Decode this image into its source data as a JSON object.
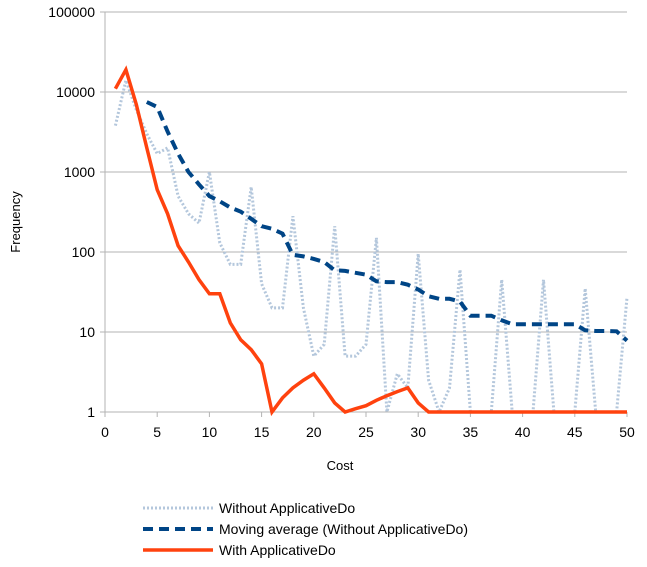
{
  "chart_data": {
    "type": "line",
    "title": "",
    "xlabel": "Cost",
    "ylabel": "Frequency",
    "xlim": [
      0,
      50
    ],
    "ylim": [
      1,
      100000
    ],
    "yscale": "log",
    "grid": {
      "horizontal": true,
      "vertical": false
    },
    "legend_position": "bottom",
    "x_ticks": [
      0,
      5,
      10,
      15,
      20,
      25,
      30,
      35,
      40,
      45,
      50
    ],
    "y_ticks": [
      1,
      10,
      100,
      1000,
      10000,
      100000
    ],
    "x_tick_labels": [
      "0",
      "5",
      "10",
      "15",
      "20",
      "25",
      "30",
      "35",
      "40",
      "45",
      "50"
    ],
    "y_tick_labels": [
      "1",
      "10",
      "100",
      "1000",
      "10000",
      "100000"
    ],
    "series": [
      {
        "name": "Without ApplicativeDo",
        "color": "#b4c7dc",
        "style": "dotted",
        "points": [
          [
            1,
            3800
          ],
          [
            2,
            14000
          ],
          [
            3,
            6000
          ],
          [
            4,
            3000
          ],
          [
            5,
            1700
          ],
          [
            6,
            2000
          ],
          [
            7,
            500
          ],
          [
            8,
            300
          ],
          [
            9,
            230
          ],
          [
            10,
            1000
          ],
          [
            11,
            130
          ],
          [
            12,
            70
          ],
          [
            13,
            70
          ],
          [
            14,
            650
          ],
          [
            15,
            40
          ],
          [
            16,
            20
          ],
          [
            17,
            20
          ],
          [
            18,
            280
          ],
          [
            19,
            20
          ],
          [
            20,
            5
          ],
          [
            21,
            7
          ],
          [
            22,
            210
          ],
          [
            23,
            5
          ],
          [
            24,
            5
          ],
          [
            25,
            7
          ],
          [
            26,
            150
          ],
          [
            27,
            1
          ],
          [
            28,
            3
          ],
          [
            29,
            2
          ],
          [
            30,
            95
          ],
          [
            31,
            2.5
          ],
          [
            32,
            1
          ],
          [
            33,
            2
          ],
          [
            34,
            60
          ],
          [
            35,
            1
          ],
          [
            36,
            1
          ],
          [
            37,
            1
          ],
          [
            38,
            45
          ],
          [
            39,
            1
          ],
          [
            40,
            1
          ],
          [
            41,
            1
          ],
          [
            42,
            45
          ],
          [
            43,
            1
          ],
          [
            44,
            1
          ],
          [
            45,
            1
          ],
          [
            46,
            35
          ],
          [
            47,
            1
          ],
          [
            48,
            1
          ],
          [
            49,
            1
          ],
          [
            50,
            27
          ]
        ]
      },
      {
        "name": "Moving average (Without ApplicativeDo)",
        "color": "#004586",
        "style": "dashed",
        "points": [
          [
            4,
            7500
          ],
          [
            5,
            6500
          ],
          [
            6,
            3200
          ],
          [
            7,
            1700
          ],
          [
            8,
            1000
          ],
          [
            9,
            700
          ],
          [
            10,
            500
          ],
          [
            11,
            430
          ],
          [
            12,
            360
          ],
          [
            13,
            320
          ],
          [
            14,
            260
          ],
          [
            15,
            210
          ],
          [
            16,
            195
          ],
          [
            17,
            170
          ],
          [
            18,
            92
          ],
          [
            19,
            88
          ],
          [
            20,
            82
          ],
          [
            21,
            75
          ],
          [
            22,
            59
          ],
          [
            23,
            58
          ],
          [
            24,
            55
          ],
          [
            25,
            52
          ],
          [
            26,
            43
          ],
          [
            27,
            42
          ],
          [
            28,
            42
          ],
          [
            29,
            39
          ],
          [
            30,
            34
          ],
          [
            31,
            28
          ],
          [
            32,
            26
          ],
          [
            33,
            26
          ],
          [
            34,
            24
          ],
          [
            35,
            16
          ],
          [
            36,
            16
          ],
          [
            37,
            16
          ],
          [
            38,
            14
          ],
          [
            39,
            12.5
          ],
          [
            40,
            12.5
          ],
          [
            41,
            12.5
          ],
          [
            42,
            12.5
          ],
          [
            43,
            12.5
          ],
          [
            44,
            12.5
          ],
          [
            45,
            12.5
          ],
          [
            46,
            10.5
          ],
          [
            47,
            10.3
          ],
          [
            48,
            10.3
          ],
          [
            49,
            10.2
          ],
          [
            50,
            7.8
          ]
        ]
      },
      {
        "name": "With ApplicativeDo",
        "color": "#ff420e",
        "style": "solid",
        "points": [
          [
            1,
            11000
          ],
          [
            2,
            19000
          ],
          [
            3,
            7000
          ],
          [
            4,
            2000
          ],
          [
            5,
            600
          ],
          [
            6,
            300
          ],
          [
            7,
            120
          ],
          [
            8,
            75
          ],
          [
            9,
            45
          ],
          [
            10,
            30
          ],
          [
            11,
            30
          ],
          [
            12,
            13
          ],
          [
            13,
            8
          ],
          [
            14,
            6
          ],
          [
            15,
            4
          ],
          [
            16,
            1
          ],
          [
            17,
            1.5
          ],
          [
            18,
            2
          ],
          [
            19,
            2.5
          ],
          [
            20,
            3
          ],
          [
            21,
            2
          ],
          [
            22,
            1.3
          ],
          [
            23,
            1
          ],
          [
            24,
            1.1
          ],
          [
            25,
            1.2
          ],
          [
            26,
            1.4
          ],
          [
            27,
            1.6
          ],
          [
            28,
            1.8
          ],
          [
            29,
            2
          ],
          [
            30,
            1.3
          ],
          [
            31,
            1
          ],
          [
            32,
            1
          ],
          [
            33,
            1
          ],
          [
            34,
            1
          ],
          [
            35,
            1
          ],
          [
            36,
            1
          ],
          [
            37,
            1
          ],
          [
            38,
            1
          ],
          [
            39,
            1
          ],
          [
            40,
            1
          ],
          [
            41,
            1
          ],
          [
            42,
            1
          ],
          [
            43,
            1
          ],
          [
            44,
            1
          ],
          [
            45,
            1
          ],
          [
            46,
            1
          ],
          [
            47,
            1
          ],
          [
            48,
            1
          ],
          [
            49,
            1
          ],
          [
            50,
            1
          ]
        ]
      }
    ]
  }
}
